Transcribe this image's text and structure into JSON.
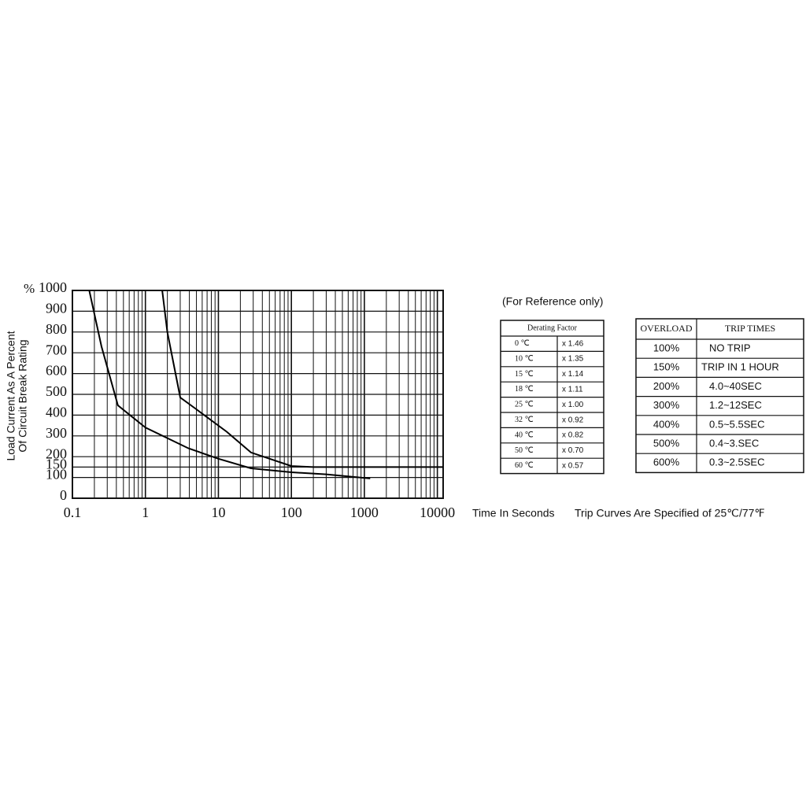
{
  "chart_data": {
    "type": "line",
    "y_axis_label": [
      "Load Current As A Percent",
      "Of Circuit Break Rating"
    ],
    "y_unit": "%",
    "x_axis_label": "Time In Seconds",
    "log_x": true,
    "xlim": [
      0.1,
      12000
    ],
    "xticks": [
      0.1,
      1,
      10,
      100,
      1000,
      10000
    ],
    "xminorticks": [
      0.2,
      0.3,
      0.4,
      0.5,
      0.6,
      0.7,
      0.8,
      0.9,
      2,
      3,
      4,
      5,
      6,
      7,
      8,
      9,
      20,
      30,
      40,
      50,
      60,
      70,
      80,
      90,
      200,
      300,
      400,
      500,
      600,
      700,
      800,
      900,
      2000,
      3000,
      4000,
      5000,
      6000,
      7000,
      8000,
      9000
    ],
    "ylim": [
      0,
      1000
    ],
    "yticks": [
      0,
      100,
      150,
      200,
      300,
      400,
      500,
      600,
      700,
      800,
      900,
      1000
    ],
    "grid": true,
    "series": [
      {
        "name": "lower",
        "color": "#000000",
        "x": [
          0.17,
          0.25,
          0.42,
          1,
          3.9,
          10,
          28,
          100,
          300,
          1200
        ],
        "values": [
          1000,
          731,
          447,
          340,
          240,
          190,
          144,
          125,
          115,
          95
        ]
      },
      {
        "name": "upper",
        "color": "#000000",
        "x": [
          1.7,
          2,
          3,
          5,
          13,
          28,
          100,
          200,
          12000
        ],
        "values": [
          1000,
          800,
          485,
          428,
          320,
          220,
          155,
          150,
          150
        ]
      }
    ]
  },
  "reference_note": "(For Reference only)",
  "derating_table": {
    "header": "Derating Factor",
    "rows": [
      [
        "0 ℃",
        "x 1.46"
      ],
      [
        "10 ℃",
        "x 1.35"
      ],
      [
        "15 ℃",
        "x 1.14"
      ],
      [
        "18 ℃",
        "x 1.11"
      ],
      [
        "25 ℃",
        "x 1.00"
      ],
      [
        "32 ℃",
        "x 0.92"
      ],
      [
        "40 ℃",
        "x 0.82"
      ],
      [
        "50 ℃",
        "x 0.70"
      ],
      [
        "60 ℃",
        "x 0.57"
      ]
    ]
  },
  "trip_table": {
    "header": [
      "OVERLOAD",
      "TRIP TIMES"
    ],
    "rows": [
      [
        "100%",
        "NO TRIP"
      ],
      [
        "150%",
        "TRIP IN 1 HOUR"
      ],
      [
        "200%",
        "4.0~40SEC"
      ],
      [
        "300%",
        "1.2~12SEC"
      ],
      [
        "400%",
        "0.5~5.5SEC"
      ],
      [
        "500%",
        "0.4~3.SEC"
      ],
      [
        "600%",
        "0.3~2.5SEC"
      ]
    ]
  },
  "footnote": "Trip Curves Are Specified of 25℃/77℉"
}
